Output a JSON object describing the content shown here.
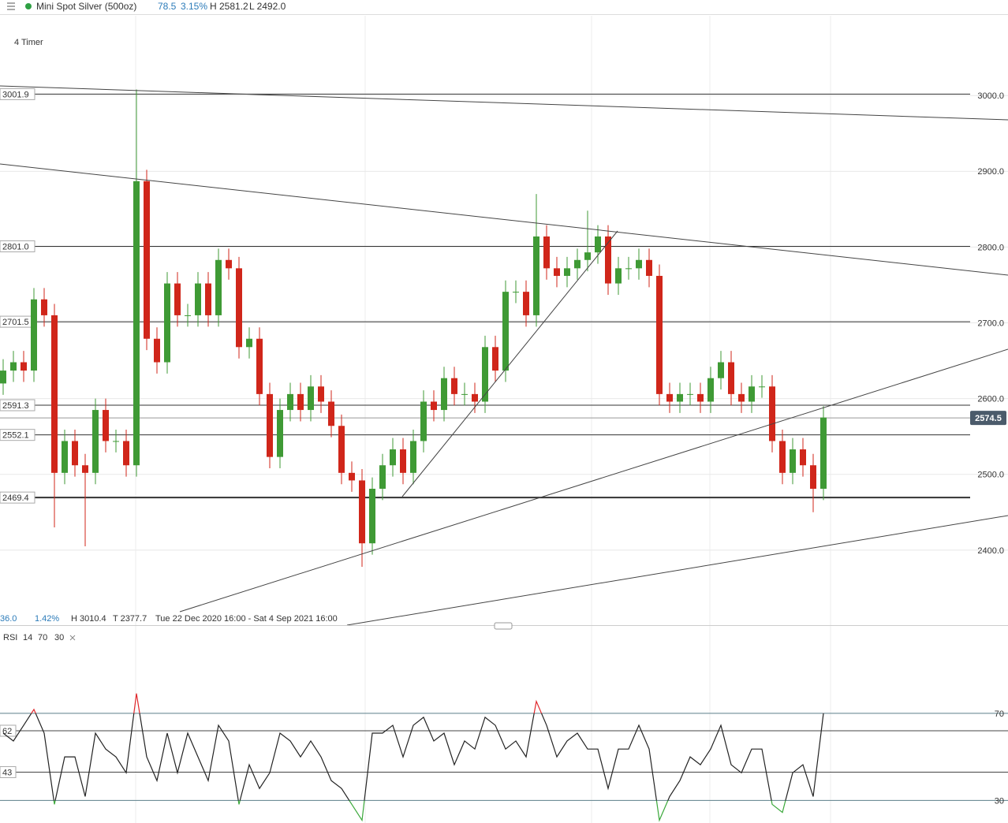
{
  "header": {
    "instrument": "Mini Spot Silver (500oz)",
    "change": "78.5",
    "change_pct": "3.15%",
    "high": "H 2581.2",
    "low": "L 2492.0"
  },
  "timeframe": "4 Timer",
  "info_bar": {
    "change": "36.0",
    "change_pct": "1.42%",
    "high": "H 3010.4",
    "low": "T 2377.7",
    "range": "Tue 22 Dec 2020 16:00 - Sat 4 Sep 2021 16:00"
  },
  "chart_data": [
    {
      "type": "candlestick",
      "up_color": "#3f9a35",
      "down_color": "#d0261a",
      "open": [
        2620,
        2637,
        2648,
        2637,
        2731,
        2710,
        2502,
        2544,
        2512,
        2502,
        2585,
        2544,
        2544,
        2512,
        2887,
        2679,
        2648,
        2752,
        2710,
        2710,
        2752,
        2710,
        2783,
        2772,
        2668,
        2679,
        2606,
        2523,
        2585,
        2606,
        2585,
        2616,
        2596,
        2564,
        2502,
        2492,
        2409,
        2481,
        2512,
        2533,
        2502,
        2544,
        2596,
        2585,
        2627,
        2606,
        2606,
        2596,
        2668,
        2637,
        2741,
        2741,
        2710,
        2814,
        2772,
        2762,
        2772,
        2783,
        2793,
        2814,
        2752,
        2772,
        2772,
        2783,
        2762,
        2606,
        2596,
        2606,
        2606,
        2596,
        2627,
        2648,
        2606,
        2596,
        2616,
        2616,
        2544,
        2502,
        2533,
        2512,
        2481
      ],
      "high": [
        2652,
        2663,
        2663,
        2746,
        2746,
        2725,
        2559,
        2559,
        2527,
        2600,
        2600,
        2559,
        2559,
        3008,
        2902,
        2694,
        2767,
        2767,
        2725,
        2767,
        2767,
        2798,
        2798,
        2787,
        2694,
        2694,
        2621,
        2600,
        2621,
        2621,
        2631,
        2631,
        2611,
        2579,
        2517,
        2507,
        2496,
        2527,
        2548,
        2548,
        2559,
        2611,
        2611,
        2642,
        2642,
        2621,
        2621,
        2683,
        2683,
        2756,
        2756,
        2756,
        2870,
        2829,
        2787,
        2787,
        2798,
        2848,
        2829,
        2829,
        2787,
        2787,
        2798,
        2798,
        2777,
        2621,
        2621,
        2621,
        2621,
        2642,
        2663,
        2663,
        2621,
        2631,
        2631,
        2631,
        2559,
        2548,
        2548,
        2527,
        2590
      ],
      "low": [
        2605,
        2622,
        2622,
        2622,
        2695,
        2430,
        2487,
        2497,
        2405,
        2487,
        2529,
        2529,
        2497,
        2497,
        2664,
        2633,
        2633,
        2695,
        2695,
        2695,
        2695,
        2695,
        2757,
        2653,
        2653,
        2591,
        2508,
        2508,
        2570,
        2570,
        2570,
        2581,
        2549,
        2487,
        2477,
        2378,
        2394,
        2466,
        2497,
        2487,
        2487,
        2529,
        2570,
        2570,
        2591,
        2591,
        2581,
        2581,
        2622,
        2622,
        2726,
        2695,
        2695,
        2757,
        2747,
        2747,
        2757,
        2768,
        2778,
        2737,
        2737,
        2757,
        2757,
        2747,
        2591,
        2581,
        2581,
        2591,
        2581,
        2581,
        2612,
        2591,
        2581,
        2581,
        2601,
        2529,
        2487,
        2487,
        2497,
        2450,
        2466
      ],
      "close": [
        2637,
        2648,
        2637,
        2731,
        2710,
        2502,
        2544,
        2512,
        2502,
        2585,
        2544,
        2544,
        2512,
        2887,
        2679,
        2648,
        2752,
        2710,
        2710,
        2752,
        2710,
        2783,
        2772,
        2668,
        2679,
        2606,
        2523,
        2585,
        2606,
        2585,
        2616,
        2596,
        2564,
        2502,
        2492,
        2409,
        2481,
        2512,
        2533,
        2502,
        2544,
        2596,
        2585,
        2627,
        2606,
        2606,
        2596,
        2668,
        2637,
        2741,
        2741,
        2710,
        2814,
        2772,
        2762,
        2772,
        2783,
        2793,
        2814,
        2752,
        2772,
        2772,
        2783,
        2762,
        2606,
        2596,
        2606,
        2606,
        2596,
        2627,
        2648,
        2606,
        2596,
        2616,
        2616,
        2544,
        2502,
        2533,
        2512,
        2481,
        2575
      ],
      "ylim": [
        2301,
        3097
      ],
      "yticks": [
        {
          "value": 2400,
          "label": "2400.0"
        },
        {
          "value": 2500,
          "label": "2500.0"
        },
        {
          "value": 2600,
          "label": "2600.0"
        },
        {
          "value": 2700,
          "label": "2700.0"
        },
        {
          "value": 2800,
          "label": "2800.0"
        },
        {
          "value": 2900,
          "label": "2900.0"
        },
        {
          "value": 3000,
          "label": "3000.0"
        }
      ],
      "levels": [
        3001.9,
        {
          "value": 2801,
          "label": "2801.0"
        },
        2701.5,
        2591.3,
        2552.1,
        2469.4
      ],
      "last_price": 2574.5,
      "grid": true
    },
    {
      "type": "line",
      "name": "RSI",
      "period": "14",
      "upper": "70",
      "lower": "30",
      "color": "#222222",
      "overbought_color": "#e0262a",
      "oversold_color": "#3aa83a",
      "values": [
        60.9,
        57.3,
        64.5,
        71.8,
        60.9,
        28.2,
        50,
        50,
        31.8,
        60.9,
        53.6,
        50,
        42.7,
        79.1,
        50,
        39.1,
        60.9,
        42.7,
        60.9,
        50,
        39.1,
        64.5,
        57.3,
        28.2,
        46.4,
        35.5,
        42.7,
        60.9,
        57.3,
        50,
        57.3,
        50,
        39.1,
        35.5,
        28.2,
        20.9,
        60.9,
        60.9,
        64.5,
        50,
        64.5,
        68.2,
        57.3,
        60.9,
        46.4,
        57.3,
        53.6,
        68.2,
        64.5,
        53.6,
        57.3,
        50,
        75.5,
        64.5,
        50,
        57.3,
        60.9,
        53.6,
        53.6,
        35.5,
        53.6,
        53.6,
        64.5,
        53.6,
        20.9,
        31.8,
        39.1,
        50,
        46.4,
        53.6,
        64.5,
        46.4,
        42.7,
        53.6,
        53.6,
        28.2,
        24.5,
        42.7,
        46.4,
        31.8,
        70
      ],
      "ylim": [
        20,
        100
      ],
      "yticks": [
        30,
        70
      ],
      "levels": [
        62,
        43
      ]
    }
  ]
}
